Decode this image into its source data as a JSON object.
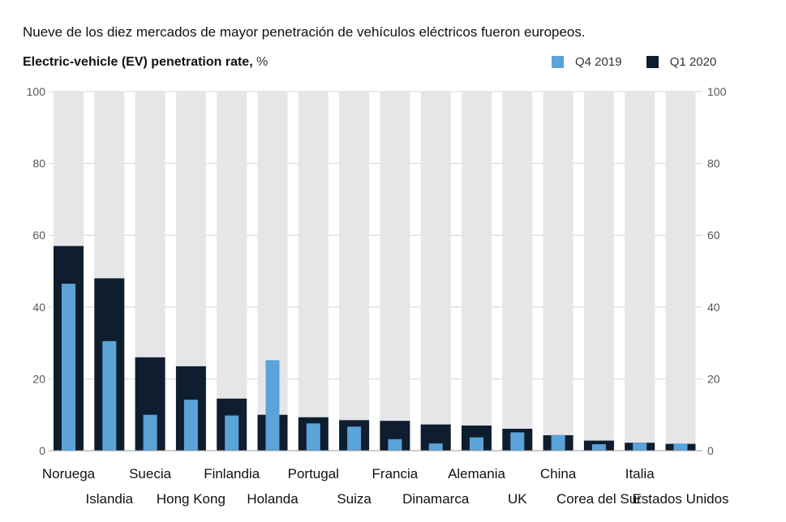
{
  "header": {
    "intro": "Nueve de los diez mercados de mayor penetración de vehículos eléctricos fueron europeos."
  },
  "chart_data": {
    "type": "bar",
    "title": "Electric-vehicle (EV) penetration rate,",
    "unit": "%",
    "categories": [
      "Noruega",
      "Islandia",
      "Suecia",
      "Hong Kong",
      "Finlandia",
      "Holanda",
      "Portugal",
      "Suiza",
      "Francia",
      "Dinamarca",
      "Alemania",
      "UK",
      "China",
      "Corea del Sur",
      "Italia",
      "Estados Unidos"
    ],
    "series": [
      {
        "name": "Q1 2020",
        "color": "#0e1e2e",
        "values": [
          57,
          48,
          26,
          23.5,
          14.5,
          10,
          9.3,
          8.5,
          8.3,
          7.3,
          7,
          6.1,
          4.3,
          2.8,
          2.2,
          1.9
        ]
      },
      {
        "name": "Q4 2019",
        "color": "#5ba3d9",
        "values": [
          46.5,
          30.5,
          10,
          14.2,
          9.8,
          25.2,
          7.6,
          6.7,
          3.2,
          2,
          3.7,
          5.1,
          4.4,
          1.8,
          2.2,
          2
        ]
      }
    ],
    "ylim": [
      0,
      100
    ],
    "yticks": [
      "0",
      "20",
      "40",
      "60",
      "80",
      "100"
    ],
    "background_bar_color": "#e6e6e9",
    "grid": true,
    "legend": "top-right"
  }
}
